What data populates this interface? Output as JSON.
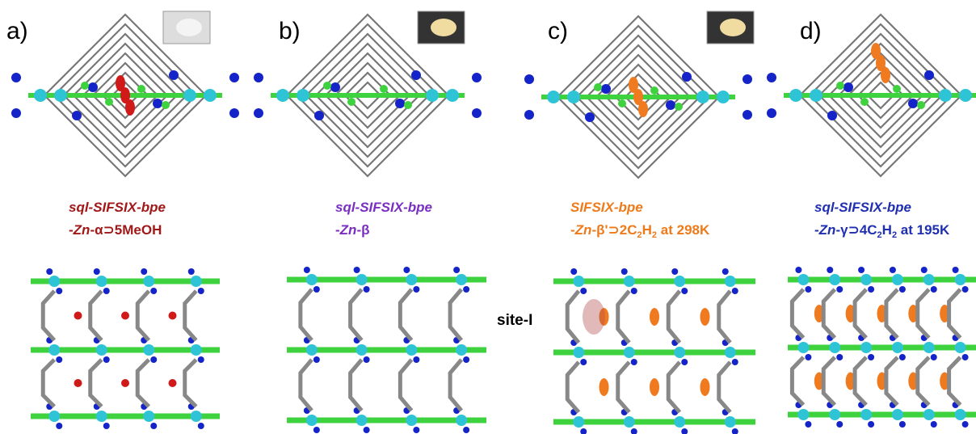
{
  "panels": [
    {
      "label": "a)",
      "name": "sql-SIFSIX-bpe",
      "formula": [
        "-",
        "Zn",
        "-α⊃5MeOH"
      ]
    },
    {
      "label": "b)",
      "name": "sql-SIFSIX-bpe",
      "formula": [
        "-",
        "Zn",
        "-β"
      ]
    },
    {
      "label": "c)",
      "name": "SIFSIX-bpe",
      "formula": [
        "-",
        "Zn",
        "-β'⊃2C",
        "2",
        "H",
        "2",
        " at 298K"
      ],
      "annotation": "site-I"
    },
    {
      "label": "d)",
      "name": "sql-SIFSIX-bpe",
      "formula": [
        "-",
        "Zn",
        "-γ⊃4C",
        "2",
        "H",
        "2",
        " at 195K"
      ]
    }
  ]
}
